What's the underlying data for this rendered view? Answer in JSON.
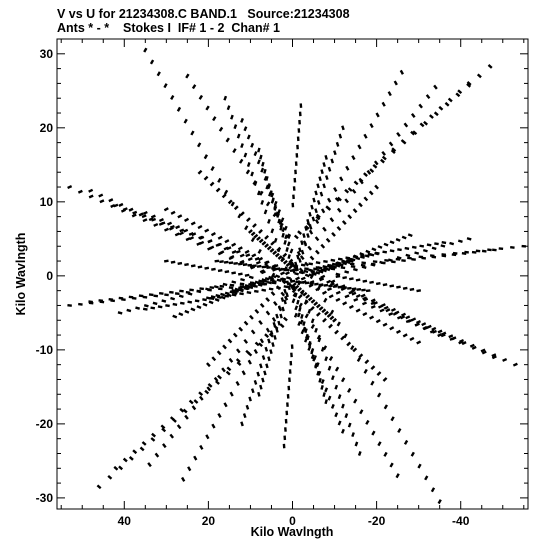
{
  "chart_data": {
    "type": "scatter",
    "title_line1": "V vs U for 21234308.C BAND.1   Source:21234308",
    "title_line2": "Ants * - *    Stokes I  IF# 1 - 2  Chan# 1",
    "xlabel": "Kilo Wavlngth",
    "ylabel": "Kilo Wavlngth",
    "xlim": [
      56,
      -56
    ],
    "ylim": [
      -31.5,
      32
    ],
    "xticks": [
      40,
      20,
      0,
      -20,
      -40
    ],
    "xtick_labels": [
      "40",
      "20",
      "0",
      "-20",
      "-40"
    ],
    "yticks": [
      30,
      20,
      10,
      0,
      -10,
      -20,
      -30
    ],
    "ytick_labels": [
      "30",
      "20",
      "10",
      "0",
      "-10",
      "-20",
      "-30"
    ],
    "x_reversed": true,
    "grid": false,
    "legend": "none",
    "marker_color": "#000000",
    "tracks": [
      {
        "u": [
          35,
          1
        ],
        "v": [
          30.5,
          1
        ]
      },
      {
        "u": [
          25,
          1
        ],
        "v": [
          27,
          0.9
        ]
      },
      {
        "u": [
          16,
          0.5
        ],
        "v": [
          24,
          0.8
        ]
      },
      {
        "u": [
          -2,
          -0.1
        ],
        "v": [
          23,
          0.7
        ]
      },
      {
        "u": [
          -26,
          -0.9
        ],
        "v": [
          27.5,
          0.9
        ]
      },
      {
        "u": [
          -34,
          -1.1
        ],
        "v": [
          25.5,
          0.8
        ]
      },
      {
        "u": [
          -42,
          -1.4
        ],
        "v": [
          26,
          0.7
        ]
      },
      {
        "u": [
          -47,
          -1.6
        ],
        "v": [
          28.3,
          0.8
        ]
      },
      {
        "u": [
          12,
          0.5
        ],
        "v": [
          21,
          0.7
        ]
      },
      {
        "u": [
          -12,
          -0.4
        ],
        "v": [
          20,
          0.7
        ]
      },
      {
        "u": [
          -8,
          -0.3
        ],
        "v": [
          16,
          0.6
        ]
      },
      {
        "u": [
          8,
          0.3
        ],
        "v": [
          17,
          0.6
        ]
      },
      {
        "u": [
          53,
          1.6
        ],
        "v": [
          12,
          0.4
        ]
      },
      {
        "u": [
          48,
          1.5
        ],
        "v": [
          11.5,
          0.4
        ]
      },
      {
        "u": [
          42,
          1.4
        ],
        "v": [
          9.5,
          0.3
        ]
      },
      {
        "u": [
          35,
          1.2
        ],
        "v": [
          8.5,
          0.3
        ]
      },
      {
        "u": [
          30,
          1
        ],
        "v": [
          9,
          0.3
        ]
      },
      {
        "u": [
          -55,
          -1.7
        ],
        "v": [
          4,
          0.1
        ]
      },
      {
        "u": [
          -48,
          -1.5
        ],
        "v": [
          3.5,
          0.1
        ]
      },
      {
        "u": [
          -42,
          -1.3
        ],
        "v": [
          5,
          0.2
        ]
      },
      {
        "u": [
          -36,
          -1.1
        ],
        "v": [
          4.5,
          0.1
        ]
      },
      {
        "u": [
          -28,
          -0.9
        ],
        "v": [
          5.5,
          0.2
        ]
      },
      {
        "u": [
          -20,
          -0.7
        ],
        "v": [
          3,
          0.1
        ]
      },
      {
        "u": [
          -14,
          -0.5
        ],
        "v": [
          2,
          0.1
        ]
      },
      {
        "u": [
          53,
          1.6
        ],
        "v": [
          -4,
          -0.1
        ]
      },
      {
        "u": [
          48,
          1.5
        ],
        "v": [
          -3.5,
          -0.1
        ]
      },
      {
        "u": [
          41,
          1.3
        ],
        "v": [
          -5,
          -0.2
        ]
      },
      {
        "u": [
          35,
          1.1
        ],
        "v": [
          -4.5,
          -0.1
        ]
      },
      {
        "u": [
          28,
          0.9
        ],
        "v": [
          -5.5,
          -0.2
        ]
      },
      {
        "u": [
          20,
          0.7
        ],
        "v": [
          -3,
          -0.1
        ]
      },
      {
        "u": [
          14,
          0.5
        ],
        "v": [
          -2,
          -0.1
        ]
      },
      {
        "u": [
          -53,
          -1.6
        ],
        "v": [
          -12,
          -0.4
        ]
      },
      {
        "u": [
          -48,
          -1.5
        ],
        "v": [
          -11,
          -0.4
        ]
      },
      {
        "u": [
          -40,
          -1.3
        ],
        "v": [
          -9,
          -0.3
        ]
      },
      {
        "u": [
          -35,
          -1.1
        ],
        "v": [
          -8,
          -0.3
        ]
      },
      {
        "u": [
          -30,
          -1
        ],
        "v": [
          -9,
          -0.3
        ]
      },
      {
        "u": [
          -35,
          -1
        ],
        "v": [
          -30.5,
          -1
        ]
      },
      {
        "u": [
          -25,
          -0.9
        ],
        "v": [
          -27,
          -0.9
        ]
      },
      {
        "u": [
          -16,
          -0.5
        ],
        "v": [
          -24,
          -0.8
        ]
      },
      {
        "u": [
          2,
          0.1
        ],
        "v": [
          -23,
          -0.7
        ]
      },
      {
        "u": [
          26,
          0.9
        ],
        "v": [
          -27.5,
          -0.9
        ]
      },
      {
        "u": [
          34,
          1.1
        ],
        "v": [
          -25.5,
          -0.8
        ]
      },
      {
        "u": [
          42,
          1.4
        ],
        "v": [
          -26,
          -0.7
        ]
      },
      {
        "u": [
          46,
          1.6
        ],
        "v": [
          -28.5,
          -0.8
        ]
      },
      {
        "u": [
          -12,
          -0.5
        ],
        "v": [
          -21,
          -0.7
        ]
      },
      {
        "u": [
          12,
          0.4
        ],
        "v": [
          -20,
          -0.7
        ]
      },
      {
        "u": [
          8,
          0.3
        ],
        "v": [
          -16,
          -0.6
        ]
      },
      {
        "u": [
          -8,
          -0.3
        ],
        "v": [
          -17,
          -0.6
        ]
      },
      {
        "u": [
          6,
          0.4
        ],
        "v": [
          12,
          0.6
        ]
      },
      {
        "u": [
          -6,
          -0.4
        ],
        "v": [
          -12,
          -0.6
        ]
      },
      {
        "u": [
          22,
          0.9
        ],
        "v": [
          14,
          0.5
        ]
      },
      {
        "u": [
          -22,
          -0.9
        ],
        "v": [
          -14,
          -0.5
        ]
      },
      {
        "u": [
          -20,
          -0.8
        ],
        "v": [
          12,
          0.5
        ]
      },
      {
        "u": [
          20,
          0.8
        ],
        "v": [
          -12,
          -0.5
        ]
      },
      {
        "u": [
          30,
          1
        ],
        "v": [
          2,
          0.1
        ]
      },
      {
        "u": [
          -30,
          -1
        ],
        "v": [
          -2,
          -0.1
        ]
      },
      {
        "u": [
          18,
          0.7
        ],
        "v": [
          2,
          0.05
        ]
      },
      {
        "u": [
          -18,
          -0.7
        ],
        "v": [
          -2,
          -0.05
        ]
      },
      {
        "u": [
          10,
          0.4
        ],
        "v": [
          6,
          0.2
        ]
      },
      {
        "u": [
          -10,
          -0.4
        ],
        "v": [
          -6,
          -0.2
        ]
      }
    ]
  }
}
